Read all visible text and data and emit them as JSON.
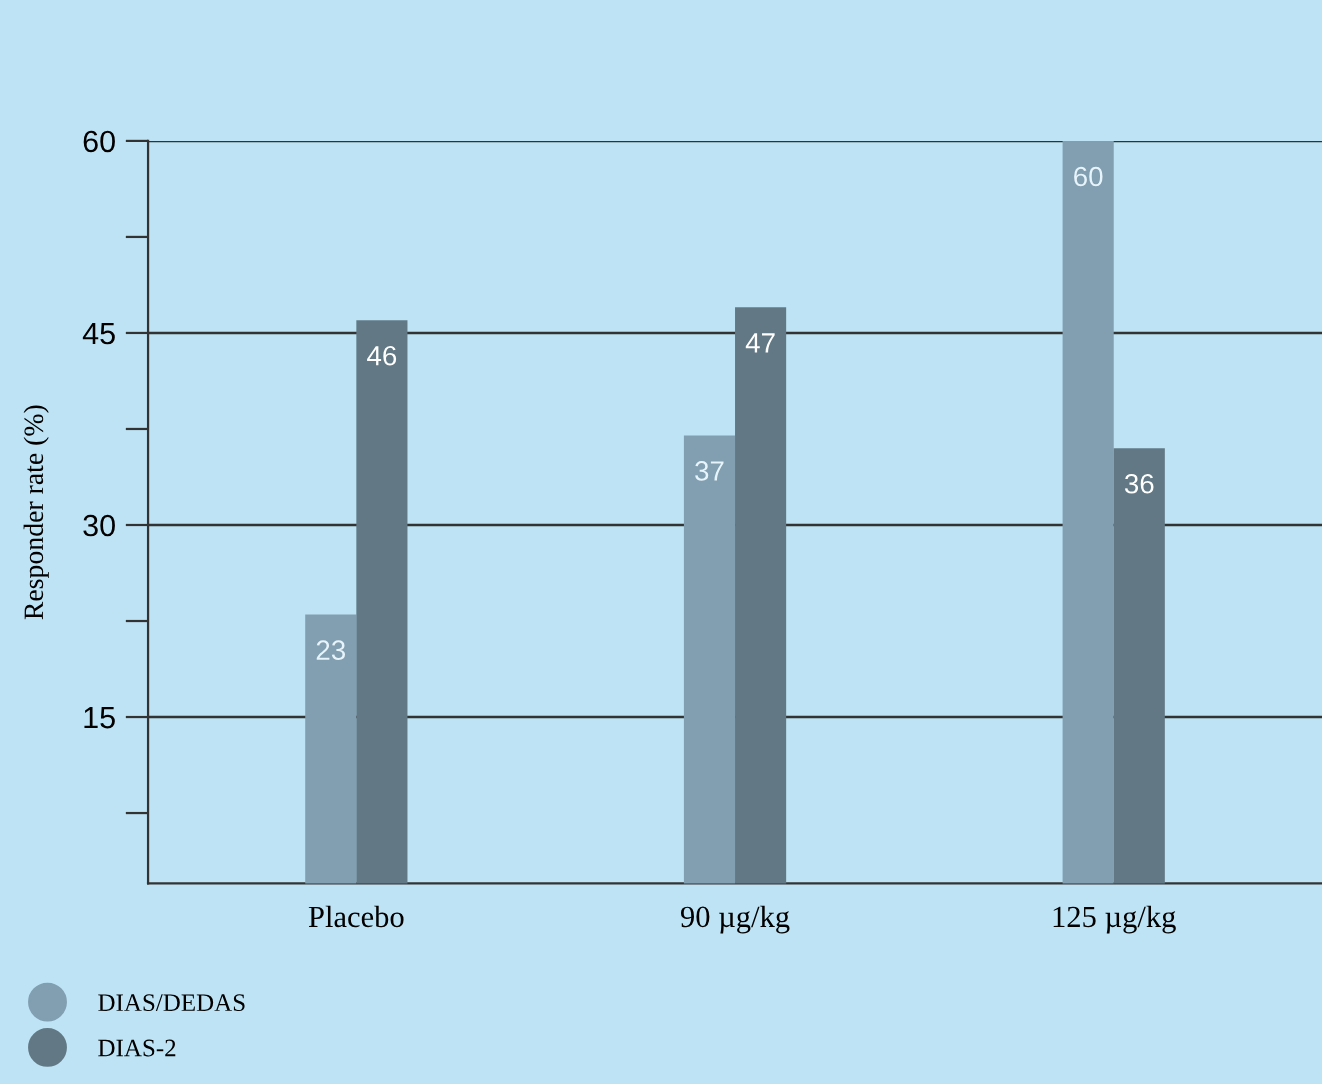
{
  "chart_data": {
    "type": "bar",
    "ylabel": "Responder rate (%)",
    "categories": [
      "Placebo",
      "90 µg/kg",
      "125 µg/kg"
    ],
    "series": [
      {
        "name": "DIAS/DEDAS",
        "color": "#819fb0",
        "values": [
          23,
          37,
          60
        ]
      },
      {
        "name": "DIAS-2",
        "color": "#627985",
        "values": [
          46,
          47,
          36
        ]
      }
    ],
    "ylim": [
      2,
      60
    ],
    "yticks": [
      {
        "value": 7.5,
        "label": null
      },
      15,
      {
        "value": 22.5,
        "label": null
      },
      30,
      {
        "value": 37.5,
        "label": null
      },
      45,
      {
        "value": 52.5,
        "label": null
      },
      60
    ],
    "grid": "y",
    "data_labels": true,
    "legend": "bottom left"
  }
}
